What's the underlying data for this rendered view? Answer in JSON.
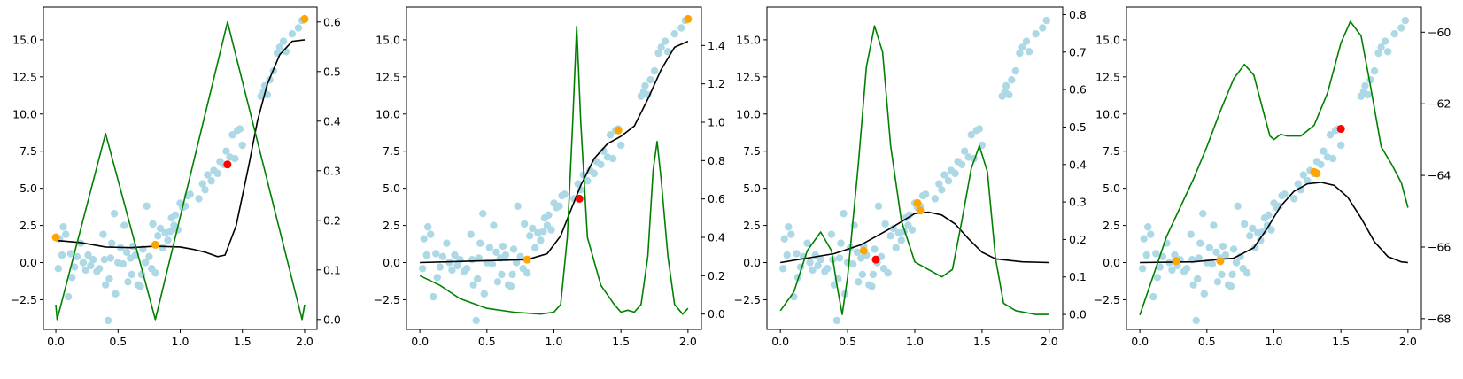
{
  "colors": {
    "scatter": "#add8e6",
    "selected": "#ffa500",
    "current": "#ff0000",
    "mean": "#000000",
    "acquisition": "#008000"
  },
  "chart_data": [
    {
      "type": "scatter",
      "title": "",
      "xlabel": "",
      "ylabel": "",
      "xlim": [
        -0.1,
        2.1
      ],
      "ylim": [
        -4.5,
        17.2
      ],
      "y2lim": [
        -0.02,
        0.63
      ],
      "xticks": [
        0.0,
        0.5,
        1.0,
        1.5,
        2.0
      ],
      "xtick_labels": [
        "0.0",
        "0.5",
        "1.0",
        "1.5",
        "2.0"
      ],
      "yticks": [
        -2.5,
        0.0,
        2.5,
        5.0,
        7.5,
        10.0,
        12.5,
        15.0
      ],
      "ytick_labels": [
        "−2.5",
        "0.0",
        "2.5",
        "5.0",
        "7.5",
        "10.0",
        "12.5",
        "15.0"
      ],
      "y2ticks": [
        0.0,
        0.1,
        0.2,
        0.3,
        0.4,
        0.5,
        0.6
      ],
      "y2tick_labels": [
        "0.0",
        "0.1",
        "0.2",
        "0.3",
        "0.4",
        "0.5",
        "0.6"
      ],
      "grid": false,
      "selected_points": [
        [
          0.0,
          1.7
        ],
        [
          0.8,
          1.2
        ],
        [
          2.0,
          16.4
        ]
      ],
      "current_point": [
        1.38,
        6.6
      ],
      "mean_curve": [
        [
          0.0,
          1.5
        ],
        [
          0.2,
          1.35
        ],
        [
          0.4,
          1.05
        ],
        [
          0.6,
          1.0
        ],
        [
          0.8,
          1.1
        ],
        [
          1.0,
          1.05
        ],
        [
          1.1,
          0.9
        ],
        [
          1.2,
          0.7
        ],
        [
          1.3,
          0.4
        ],
        [
          1.36,
          0.5
        ],
        [
          1.45,
          2.5
        ],
        [
          1.55,
          6.5
        ],
        [
          1.62,
          9.5
        ],
        [
          1.7,
          12.0
        ],
        [
          1.8,
          14.0
        ],
        [
          1.9,
          14.9
        ],
        [
          2.0,
          15.0
        ]
      ],
      "acquisition_curve": [
        [
          0.0,
          0.03
        ],
        [
          0.01,
          0.0
        ],
        [
          0.4,
          0.375
        ],
        [
          0.8,
          0.0
        ],
        [
          1.38,
          0.6
        ],
        [
          1.98,
          0.0
        ],
        [
          2.0,
          0.03
        ]
      ]
    },
    {
      "type": "scatter",
      "title": "",
      "xlabel": "",
      "ylabel": "",
      "xlim": [
        -0.1,
        2.1
      ],
      "ylim": [
        -4.5,
        17.2
      ],
      "y2lim": [
        -0.08,
        1.6
      ],
      "xticks": [
        0.0,
        0.5,
        1.0,
        1.5,
        2.0
      ],
      "xtick_labels": [
        "0.0",
        "0.5",
        "1.0",
        "1.5",
        "2.0"
      ],
      "yticks": [
        -2.5,
        0.0,
        2.5,
        5.0,
        7.5,
        10.0,
        12.5,
        15.0
      ],
      "ytick_labels": [
        "−2.5",
        "0.0",
        "2.5",
        "5.0",
        "7.5",
        "10.0",
        "12.5",
        "15.0"
      ],
      "y2ticks": [
        0.0,
        0.2,
        0.4,
        0.6,
        0.8,
        1.0,
        1.2,
        1.4
      ],
      "y2tick_labels": [
        "0.0",
        "0.2",
        "0.4",
        "0.6",
        "0.8",
        "1.0",
        "1.2",
        "1.4"
      ],
      "grid": false,
      "selected_points": [
        [
          0.8,
          0.2
        ],
        [
          1.48,
          8.9
        ],
        [
          2.0,
          16.4
        ]
      ],
      "current_point": [
        1.19,
        4.3
      ],
      "mean_curve": [
        [
          0.0,
          0.0
        ],
        [
          0.4,
          0.1
        ],
        [
          0.8,
          0.2
        ],
        [
          0.95,
          0.6
        ],
        [
          1.05,
          1.8
        ],
        [
          1.12,
          3.4
        ],
        [
          1.2,
          5.2
        ],
        [
          1.3,
          7.0
        ],
        [
          1.4,
          8.0
        ],
        [
          1.5,
          8.5
        ],
        [
          1.6,
          9.2
        ],
        [
          1.7,
          11.0
        ],
        [
          1.8,
          13.0
        ],
        [
          1.9,
          14.5
        ],
        [
          2.0,
          14.9
        ]
      ],
      "acquisition_curve": [
        [
          0.0,
          0.2
        ],
        [
          0.15,
          0.15
        ],
        [
          0.3,
          0.08
        ],
        [
          0.5,
          0.03
        ],
        [
          0.7,
          0.01
        ],
        [
          0.9,
          0.0
        ],
        [
          1.0,
          0.01
        ],
        [
          1.05,
          0.05
        ],
        [
          1.1,
          0.4
        ],
        [
          1.14,
          1.0
        ],
        [
          1.17,
          1.5
        ],
        [
          1.2,
          1.0
        ],
        [
          1.25,
          0.4
        ],
        [
          1.35,
          0.15
        ],
        [
          1.45,
          0.05
        ],
        [
          1.5,
          0.01
        ],
        [
          1.55,
          0.02
        ],
        [
          1.6,
          0.01
        ],
        [
          1.65,
          0.05
        ],
        [
          1.7,
          0.3
        ],
        [
          1.74,
          0.75
        ],
        [
          1.77,
          0.9
        ],
        [
          1.8,
          0.7
        ],
        [
          1.85,
          0.3
        ],
        [
          1.9,
          0.05
        ],
        [
          1.96,
          0.0
        ],
        [
          2.0,
          0.03
        ]
      ]
    },
    {
      "type": "scatter",
      "title": "",
      "xlabel": "",
      "ylabel": "",
      "xlim": [
        -0.1,
        2.1
      ],
      "ylim": [
        -4.5,
        17.2
      ],
      "y2lim": [
        -0.04,
        0.82
      ],
      "xticks": [
        0.0,
        0.5,
        1.0,
        1.5,
        2.0
      ],
      "xtick_labels": [
        "0.0",
        "0.5",
        "1.0",
        "1.5",
        "2.0"
      ],
      "yticks": [
        -2.5,
        0.0,
        2.5,
        5.0,
        7.5,
        10.0,
        12.5,
        15.0
      ],
      "ytick_labels": [
        "−2.5",
        "0.0",
        "2.5",
        "5.0",
        "7.5",
        "10.0",
        "12.5",
        "15.0"
      ],
      "y2ticks": [
        0.0,
        0.1,
        0.2,
        0.3,
        0.4,
        0.5,
        0.6,
        0.7,
        0.8
      ],
      "y2tick_labels": [
        "0.0",
        "0.1",
        "0.2",
        "0.3",
        "0.4",
        "0.5",
        "0.6",
        "0.7",
        "0.8"
      ],
      "grid": false,
      "selected_points": [
        [
          0.62,
          0.8
        ],
        [
          1.02,
          4.0
        ],
        [
          1.04,
          3.5
        ]
      ],
      "current_point": [
        0.71,
        0.2
      ],
      "mean_curve": [
        [
          0.0,
          0.0
        ],
        [
          0.2,
          0.3
        ],
        [
          0.4,
          0.6
        ],
        [
          0.6,
          1.2
        ],
        [
          0.8,
          2.2
        ],
        [
          1.0,
          3.3
        ],
        [
          1.1,
          3.4
        ],
        [
          1.2,
          3.2
        ],
        [
          1.3,
          2.6
        ],
        [
          1.4,
          1.6
        ],
        [
          1.5,
          0.7
        ],
        [
          1.6,
          0.25
        ],
        [
          1.8,
          0.05
        ],
        [
          2.0,
          0.0
        ]
      ],
      "acquisition_curve": [
        [
          0.0,
          0.01
        ],
        [
          0.1,
          0.06
        ],
        [
          0.2,
          0.17
        ],
        [
          0.3,
          0.22
        ],
        [
          0.38,
          0.17
        ],
        [
          0.42,
          0.08
        ],
        [
          0.46,
          0.0
        ],
        [
          0.5,
          0.1
        ],
        [
          0.58,
          0.4
        ],
        [
          0.64,
          0.66
        ],
        [
          0.7,
          0.77
        ],
        [
          0.76,
          0.7
        ],
        [
          0.82,
          0.45
        ],
        [
          0.9,
          0.25
        ],
        [
          1.0,
          0.14
        ],
        [
          1.1,
          0.12
        ],
        [
          1.2,
          0.1
        ],
        [
          1.28,
          0.12
        ],
        [
          1.35,
          0.25
        ],
        [
          1.42,
          0.39
        ],
        [
          1.48,
          0.45
        ],
        [
          1.54,
          0.38
        ],
        [
          1.6,
          0.15
        ],
        [
          1.66,
          0.03
        ],
        [
          1.75,
          0.01
        ],
        [
          1.9,
          0.0
        ],
        [
          2.0,
          0.0
        ]
      ]
    },
    {
      "type": "scatter",
      "title": "",
      "xlabel": "",
      "ylabel": "",
      "xlim": [
        -0.1,
        2.1
      ],
      "ylim": [
        -4.5,
        17.2
      ],
      "y2lim": [
        -68.3,
        -59.3
      ],
      "xticks": [
        0.0,
        0.5,
        1.0,
        1.5,
        2.0
      ],
      "xtick_labels": [
        "0.0",
        "0.5",
        "1.0",
        "1.5",
        "2.0"
      ],
      "yticks": [
        -2.5,
        0.0,
        2.5,
        5.0,
        7.5,
        10.0,
        12.5,
        15.0
      ],
      "ytick_labels": [
        "−2.5",
        "0.0",
        "2.5",
        "5.0",
        "7.5",
        "10.0",
        "12.5",
        "15.0"
      ],
      "y2ticks": [
        -68,
        -66,
        -64,
        -62,
        -60
      ],
      "y2tick_labels": [
        "−68",
        "−66",
        "−64",
        "−62",
        "−60"
      ],
      "grid": false,
      "selected_points": [
        [
          0.27,
          0.1
        ],
        [
          0.6,
          0.1
        ],
        [
          1.3,
          6.1
        ],
        [
          1.32,
          6.0
        ]
      ],
      "current_point": [
        1.5,
        9.0
      ],
      "mean_curve": [
        [
          0.0,
          0.0
        ],
        [
          0.4,
          0.05
        ],
        [
          0.7,
          0.3
        ],
        [
          0.85,
          1.0
        ],
        [
          0.95,
          2.3
        ],
        [
          1.05,
          3.8
        ],
        [
          1.15,
          4.8
        ],
        [
          1.25,
          5.3
        ],
        [
          1.35,
          5.4
        ],
        [
          1.45,
          5.2
        ],
        [
          1.55,
          4.4
        ],
        [
          1.65,
          3.0
        ],
        [
          1.75,
          1.4
        ],
        [
          1.85,
          0.4
        ],
        [
          1.95,
          0.05
        ],
        [
          2.0,
          0.0
        ]
      ],
      "acquisition_curve": [
        [
          0.0,
          -67.9
        ],
        [
          0.1,
          -66.8
        ],
        [
          0.2,
          -65.7
        ],
        [
          0.3,
          -64.9
        ],
        [
          0.4,
          -64.1
        ],
        [
          0.5,
          -63.2
        ],
        [
          0.6,
          -62.2
        ],
        [
          0.7,
          -61.3
        ],
        [
          0.78,
          -60.9
        ],
        [
          0.85,
          -61.2
        ],
        [
          0.92,
          -62.2
        ],
        [
          0.97,
          -62.9
        ],
        [
          1.0,
          -63.0
        ],
        [
          1.05,
          -62.85
        ],
        [
          1.1,
          -62.9
        ],
        [
          1.2,
          -62.9
        ],
        [
          1.3,
          -62.6
        ],
        [
          1.4,
          -61.7
        ],
        [
          1.5,
          -60.3
        ],
        [
          1.57,
          -59.7
        ],
        [
          1.65,
          -60.1
        ],
        [
          1.72,
          -61.5
        ],
        [
          1.8,
          -63.2
        ],
        [
          1.88,
          -63.7
        ],
        [
          1.95,
          -64.2
        ],
        [
          2.0,
          -64.9
        ]
      ]
    }
  ],
  "scatter_points": [
    [
      0.02,
      -0.4
    ],
    [
      0.03,
      1.6
    ],
    [
      0.05,
      0.5
    ],
    [
      0.06,
      2.4
    ],
    [
      0.08,
      1.9
    ],
    [
      0.1,
      -2.3
    ],
    [
      0.12,
      0.6
    ],
    [
      0.13,
      -1.0
    ],
    [
      0.15,
      -0.3
    ],
    [
      0.17,
      0.4
    ],
    [
      0.2,
      1.3
    ],
    [
      0.22,
      0.0
    ],
    [
      0.24,
      -0.5
    ],
    [
      0.26,
      0.5
    ],
    [
      0.28,
      -0.2
    ],
    [
      0.3,
      0.2
    ],
    [
      0.33,
      -0.6
    ],
    [
      0.35,
      -0.4
    ],
    [
      0.38,
      1.9
    ],
    [
      0.39,
      0.2
    ],
    [
      0.4,
      -1.5
    ],
    [
      0.42,
      -3.9
    ],
    [
      0.43,
      -1.1
    ],
    [
      0.44,
      0.3
    ],
    [
      0.45,
      1.3
    ],
    [
      0.47,
      3.3
    ],
    [
      0.48,
      -2.1
    ],
    [
      0.5,
      0.0
    ],
    [
      0.52,
      1.0
    ],
    [
      0.54,
      -0.1
    ],
    [
      0.55,
      2.5
    ],
    [
      0.57,
      0.7
    ],
    [
      0.58,
      -1.3
    ],
    [
      0.6,
      0.3
    ],
    [
      0.61,
      -0.8
    ],
    [
      0.62,
      1.1
    ],
    [
      0.64,
      0.5
    ],
    [
      0.66,
      -1.5
    ],
    [
      0.68,
      -1.6
    ],
    [
      0.69,
      -0.8
    ],
    [
      0.7,
      0.9
    ],
    [
      0.72,
      0.0
    ],
    [
      0.73,
      3.8
    ],
    [
      0.75,
      0.4
    ],
    [
      0.77,
      -0.4
    ],
    [
      0.78,
      2.6
    ],
    [
      0.8,
      -0.7
    ],
    [
      0.82,
      1.8
    ],
    [
      0.84,
      2.3
    ],
    [
      0.86,
      1.0
    ],
    [
      0.88,
      2.0
    ],
    [
      0.9,
      1.5
    ],
    [
      0.92,
      2.1
    ],
    [
      0.93,
      3.0
    ],
    [
      0.95,
      2.5
    ],
    [
      0.96,
      3.2
    ],
    [
      0.98,
      2.2
    ],
    [
      1.0,
      4.0
    ],
    [
      1.02,
      3.7
    ],
    [
      1.04,
      3.8
    ],
    [
      1.06,
      4.5
    ],
    [
      1.08,
      4.6
    ],
    [
      1.15,
      4.3
    ],
    [
      1.18,
      5.3
    ],
    [
      1.2,
      4.9
    ],
    [
      1.22,
      5.9
    ],
    [
      1.25,
      5.5
    ],
    [
      1.27,
      6.2
    ],
    [
      1.3,
      6.0
    ],
    [
      1.32,
      6.8
    ],
    [
      1.35,
      6.6
    ],
    [
      1.37,
      7.5
    ],
    [
      1.4,
      7.1
    ],
    [
      1.42,
      8.6
    ],
    [
      1.44,
      7.0
    ],
    [
      1.46,
      8.9
    ],
    [
      1.48,
      9.0
    ],
    [
      1.5,
      7.9
    ],
    [
      1.65,
      11.2
    ],
    [
      1.67,
      11.5
    ],
    [
      1.68,
      11.9
    ],
    [
      1.7,
      11.3
    ],
    [
      1.72,
      12.3
    ],
    [
      1.75,
      12.9
    ],
    [
      1.78,
      14.1
    ],
    [
      1.8,
      14.5
    ],
    [
      1.83,
      14.9
    ],
    [
      1.85,
      14.2
    ],
    [
      1.9,
      15.4
    ],
    [
      1.95,
      15.8
    ],
    [
      1.98,
      16.3
    ]
  ]
}
